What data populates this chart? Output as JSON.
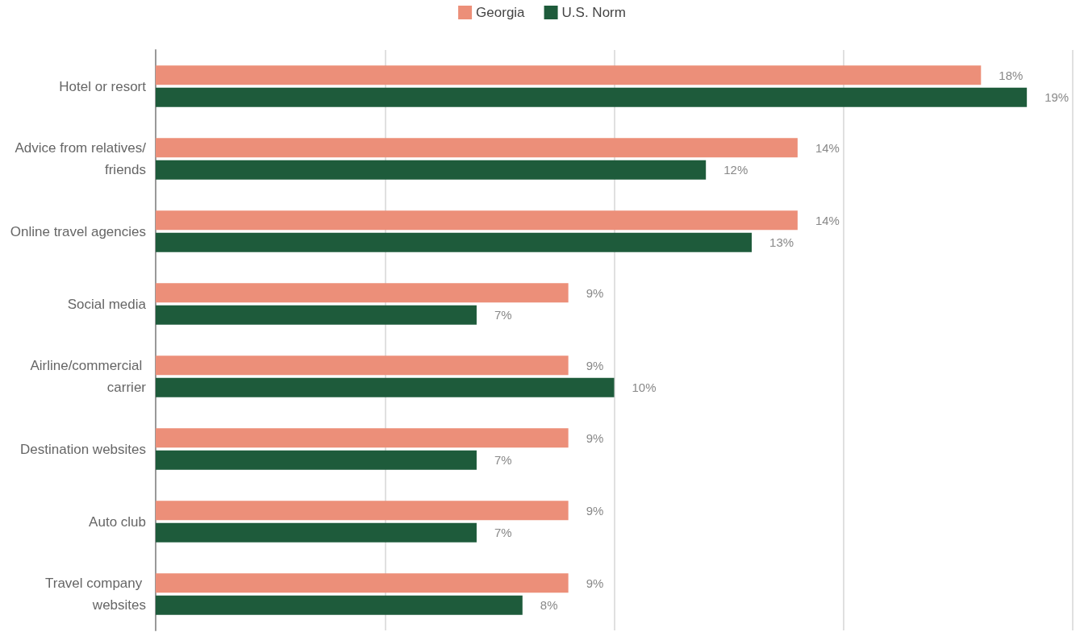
{
  "chart_data": {
    "type": "bar",
    "orientation": "horizontal",
    "categories": [
      "Hotel or resort",
      "Advice from relatives/friends",
      "Online travel agencies",
      "Social media",
      "Airline/commercial carrier",
      "Destination websites",
      "Auto club",
      "Travel company websites"
    ],
    "series": [
      {
        "name": "Georgia",
        "color": "#ec8f79",
        "values": [
          18,
          14,
          14,
          9,
          9,
          9,
          9,
          9
        ],
        "value_labels": [
          "18%",
          "14%",
          "14%",
          "9%",
          "9%",
          "9%",
          "9%",
          "9%"
        ]
      },
      {
        "name": "U.S. Norm",
        "color": "#1e5b3b",
        "values": [
          19,
          12,
          13,
          7,
          10,
          7,
          7,
          8
        ],
        "value_labels": [
          "19%",
          "12%",
          "13%",
          "7%",
          "10%",
          "7%",
          "7%",
          "8%"
        ]
      }
    ],
    "xlim": [
      0,
      20
    ],
    "xticks": [
      {
        "value": 0,
        "label": null
      },
      {
        "value": 5,
        "label": null
      },
      {
        "value": 10,
        "label": null
      },
      {
        "value": 15,
        "label": null
      },
      {
        "value": 20,
        "label": null
      }
    ],
    "grid": "x",
    "legend": "top",
    "tick_labels": "y"
  }
}
